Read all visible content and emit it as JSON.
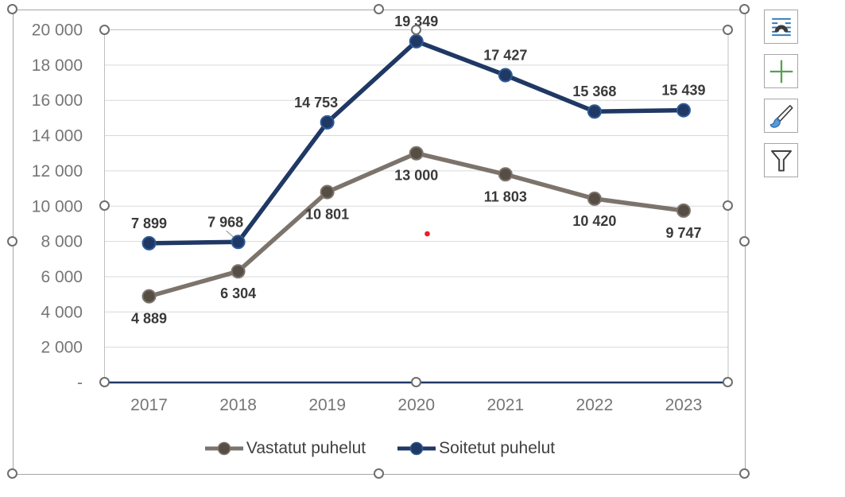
{
  "chart_data": {
    "type": "line",
    "title": "",
    "categories": [
      "2017",
      "2018",
      "2019",
      "2020",
      "2021",
      "2022",
      "2023"
    ],
    "series": [
      {
        "name": "Vastatut puhelut",
        "values": [
          4889,
          6304,
          10801,
          13000,
          11803,
          10420,
          9747
        ],
        "color": "#7c746c",
        "marker_color": "#564e45",
        "marker_edge": "#7c746c",
        "label_side": "below"
      },
      {
        "name": "Soitetut puhelut",
        "values": [
          7899,
          7968,
          14753,
          19349,
          17427,
          15368,
          15439
        ],
        "color": "#1f3864",
        "marker_color": "#1f3864",
        "marker_edge": "#2e5a96",
        "label_side": "above"
      }
    ],
    "ylim": [
      0,
      20000
    ],
    "y_tick_step": 2000,
    "y_tick_labels": [
      "20 000",
      "18 000",
      "16 000",
      "14 000",
      "12 000",
      "10 000",
      "8 000",
      "6 000",
      "4 000",
      "2 000",
      "-"
    ],
    "x_axis_color": "#1f3864",
    "gridline_color": "#d9d9d9",
    "grid": true,
    "legend_position": "bottom",
    "data_labels": true,
    "number_format": "space-thousands",
    "label_adjustments": [
      {
        "series": 1,
        "index": 1,
        "dx": -16,
        "leader": true
      },
      {
        "series": 1,
        "index": 2,
        "dx": -14,
        "leader": false
      }
    ]
  },
  "selection": {
    "chart_selected": true,
    "plot_area_selected": true,
    "handle_color": "#6e6e6e"
  },
  "toolbar": {
    "buttons": [
      {
        "id": "layout-options",
        "icon": "layout-options-icon"
      },
      {
        "id": "chart-elements",
        "icon": "plus-icon"
      },
      {
        "id": "chart-styles",
        "icon": "paintbrush-icon"
      },
      {
        "id": "chart-filters",
        "icon": "funnel-icon"
      }
    ]
  },
  "annotations": {
    "red_dot": {
      "color": "#ee1c25"
    }
  },
  "colors": {
    "axis_text": "#767676",
    "data_label_text": "#3a3a3a",
    "legend_text": "#3f3f3f",
    "plot_border": "#bfbfbf",
    "chart_border": "#a6a6a6"
  }
}
